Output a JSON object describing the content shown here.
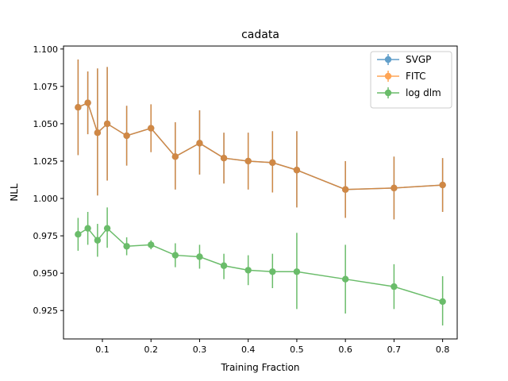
{
  "chart_data": {
    "type": "line",
    "title": "cadata",
    "xlabel": "Training Fraction",
    "ylabel": "NLL",
    "xlim": [
      0.02,
      0.83
    ],
    "ylim": [
      0.906,
      1.102
    ],
    "grid": false,
    "legend_position": "top-right",
    "x": [
      0.05,
      0.07,
      0.09,
      0.11,
      0.15,
      0.2,
      0.25,
      0.3,
      0.35,
      0.4,
      0.45,
      0.5,
      0.6,
      0.7,
      0.8
    ],
    "xticks": [
      0.1,
      0.2,
      0.3,
      0.4,
      0.5,
      0.6,
      0.7,
      0.8
    ],
    "xtick_labels": [
      "0.1",
      "0.2",
      "0.3",
      "0.4",
      "0.5",
      "0.6",
      "0.7",
      "0.8"
    ],
    "yticks": [
      0.925,
      0.95,
      0.975,
      1.0,
      1.025,
      1.05,
      1.075,
      1.1
    ],
    "ytick_labels": [
      "0.925",
      "0.950",
      "0.975",
      "1.000",
      "1.025",
      "1.050",
      "1.075",
      "1.100"
    ],
    "series": [
      {
        "name": "SVGP",
        "color": "#1f77b4",
        "values": [
          1.061,
          1.064,
          1.044,
          1.05,
          1.042,
          1.047,
          1.028,
          1.037,
          1.027,
          1.025,
          1.024,
          1.019,
          1.006,
          1.007,
          1.009
        ],
        "err_low": [
          1.029,
          1.043,
          1.002,
          1.012,
          1.022,
          1.031,
          1.006,
          1.016,
          1.01,
          1.006,
          1.004,
          0.994,
          0.987,
          0.986,
          0.991
        ],
        "err_high": [
          1.093,
          1.085,
          1.087,
          1.088,
          1.062,
          1.063,
          1.051,
          1.059,
          1.044,
          1.044,
          1.045,
          1.045,
          1.025,
          1.028,
          1.027
        ]
      },
      {
        "name": "FITC",
        "color": "#ff7f0e",
        "values": [
          1.061,
          1.064,
          1.044,
          1.05,
          1.042,
          1.047,
          1.028,
          1.037,
          1.027,
          1.025,
          1.024,
          1.019,
          1.006,
          1.007,
          1.009
        ],
        "err_low": [
          1.029,
          1.043,
          1.002,
          1.012,
          1.022,
          1.031,
          1.006,
          1.016,
          1.01,
          1.006,
          1.004,
          0.994,
          0.987,
          0.986,
          0.991
        ],
        "err_high": [
          1.093,
          1.085,
          1.087,
          1.088,
          1.062,
          1.063,
          1.051,
          1.059,
          1.044,
          1.044,
          1.045,
          1.045,
          1.025,
          1.028,
          1.027
        ]
      },
      {
        "name": "log dlm",
        "color": "#2ca02c",
        "values": [
          0.976,
          0.98,
          0.972,
          0.98,
          0.968,
          0.969,
          0.962,
          0.961,
          0.955,
          0.952,
          0.951,
          0.951,
          0.946,
          0.941,
          0.931
        ],
        "err_low": [
          0.965,
          0.969,
          0.961,
          0.967,
          0.962,
          0.966,
          0.954,
          0.953,
          0.946,
          0.942,
          0.94,
          0.926,
          0.923,
          0.926,
          0.915
        ],
        "err_high": [
          0.987,
          0.991,
          0.983,
          0.994,
          0.974,
          0.972,
          0.97,
          0.969,
          0.963,
          0.962,
          0.963,
          0.977,
          0.969,
          0.956,
          0.948
        ]
      }
    ]
  }
}
